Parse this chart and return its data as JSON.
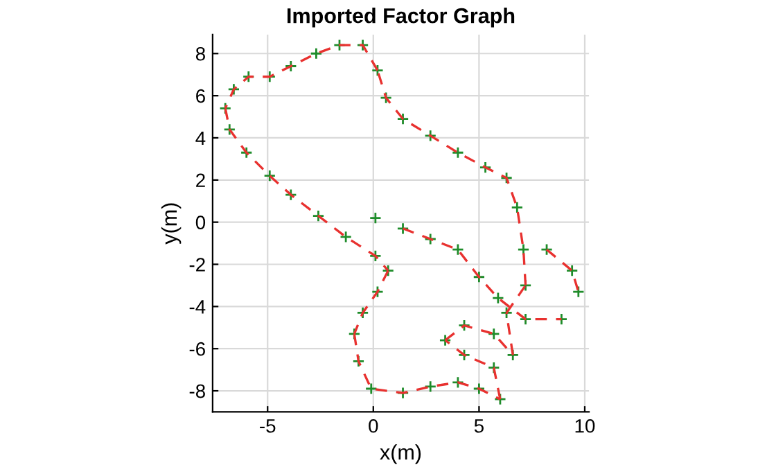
{
  "chart_data": {
    "type": "line",
    "title": "Imported Factor Graph",
    "xlabel": "x(m)",
    "ylabel": "y(m)",
    "xlim": [
      -7.6,
      10.2
    ],
    "ylim": [
      -9.0,
      8.9
    ],
    "xticks": [
      -5,
      0,
      5,
      10
    ],
    "yticks": [
      -8,
      -6,
      -4,
      -2,
      0,
      2,
      4,
      6,
      8
    ],
    "grid": true,
    "series": [
      {
        "type": "line",
        "color": "#e8312f",
        "line_style": "dashed",
        "x": [
          0.2,
          -0.5,
          -1.6,
          -2.7,
          -3.9,
          -4.9,
          -5.9,
          -6.6,
          -7.0
        ],
        "values": [
          7.2,
          8.4,
          8.4,
          8.0,
          7.4,
          6.9,
          6.9,
          6.3,
          5.4
        ]
      },
      {
        "color": "#e8312f",
        "line_style": "dashed",
        "x": [
          -7.0,
          -6.8,
          -6.0,
          -4.9,
          -3.9,
          -2.6,
          -1.3,
          0.1,
          0.7
        ],
        "values": [
          5.4,
          4.4,
          3.3,
          2.2,
          1.3,
          0.3,
          -0.7,
          -1.6,
          -2.3
        ]
      },
      {
        "color": "#e8312f",
        "line_style": "dashed",
        "x": [
          0.7,
          0.2,
          -0.5,
          -0.9
        ],
        "values": [
          -2.3,
          -3.3,
          -4.3,
          -5.3
        ]
      },
      {
        "color": "#e8312f",
        "line_style": "dashed",
        "x": [
          -0.9,
          -0.7,
          -0.1,
          1.4,
          2.7,
          4.0,
          5.0,
          6.0
        ],
        "values": [
          -5.3,
          -6.6,
          -7.9,
          -8.1,
          -7.8,
          -7.6,
          -7.9,
          -8.4
        ]
      },
      {
        "color": "#e8312f",
        "line_style": "dashed",
        "x": [
          6.0,
          5.7,
          4.3,
          3.4
        ],
        "values": [
          -8.4,
          -6.9,
          -6.3,
          -5.6
        ]
      },
      {
        "color": "#e8312f",
        "line_style": "dashed",
        "x": [
          3.4,
          4.3,
          5.7,
          6.6
        ],
        "values": [
          -5.6,
          -4.9,
          -5.3,
          -6.3
        ]
      },
      {
        "color": "#e8312f",
        "line_style": "dashed",
        "x": [
          6.6,
          6.3
        ],
        "values": [
          -6.3,
          -4.3
        ]
      },
      {
        "color": "#e8312f",
        "line_style": "dashed",
        "x": [
          6.3,
          7.2
        ],
        "values": [
          -4.3,
          -3.0
        ]
      },
      {
        "color": "#e8312f",
        "line_style": "dashed",
        "x": [
          7.2,
          7.1,
          6.8,
          6.3,
          5.3,
          4.0,
          2.7,
          1.4,
          0.6,
          0.2
        ],
        "values": [
          -3.0,
          -1.3,
          0.7,
          2.1,
          2.6,
          3.3,
          4.1,
          4.9,
          5.9,
          7.2
        ]
      },
      {
        "color": "#e8312f",
        "line_style": "dashed",
        "x": [
          1.4,
          2.7,
          4.0,
          5.0,
          5.9,
          7.2,
          8.9
        ],
        "values": [
          -0.3,
          -0.8,
          -1.3,
          -2.6,
          -3.6,
          -4.6,
          -4.6
        ]
      },
      {
        "color": "#e8312f",
        "line_style": "dashed",
        "x": [
          8.2,
          9.4,
          9.7
        ],
        "values": [
          -1.3,
          -2.3,
          -3.3
        ]
      },
      {
        "type": "scatter",
        "color": "#1e8c2a",
        "marker": "cross",
        "x": [
          0.1,
          0.2,
          -0.5,
          -1.6,
          -2.7,
          -3.9,
          -4.9,
          -5.9,
          -6.6,
          -7.0,
          -6.8,
          -6.0,
          -4.9,
          -3.9,
          -2.6,
          -1.3,
          0.1,
          0.7,
          0.2,
          -0.5,
          -0.9,
          -0.7,
          -0.1,
          1.4,
          2.7,
          4.0,
          5.0,
          6.0,
          5.7,
          4.3,
          3.4,
          4.3,
          5.7,
          6.6,
          6.3,
          7.2,
          7.1,
          6.8,
          6.3,
          5.3,
          4.0,
          2.7,
          1.4,
          0.6,
          1.4,
          2.7,
          4.0,
          5.0,
          5.9,
          7.2,
          8.9,
          8.2,
          9.4,
          9.7
        ],
        "values": [
          0.2,
          7.2,
          8.4,
          8.4,
          8.0,
          7.4,
          6.9,
          6.9,
          6.3,
          5.4,
          4.4,
          3.3,
          2.2,
          1.3,
          0.3,
          -0.7,
          -1.6,
          -2.3,
          -3.3,
          -4.3,
          -5.3,
          -6.6,
          -7.9,
          -8.1,
          -7.8,
          -7.6,
          -7.9,
          -8.4,
          -6.9,
          -6.3,
          -5.6,
          -4.9,
          -5.3,
          -6.3,
          -4.3,
          -3.0,
          -1.3,
          0.7,
          2.1,
          2.6,
          3.3,
          4.1,
          4.9,
          5.9,
          -0.3,
          -0.8,
          -1.3,
          -2.6,
          -3.6,
          -4.6,
          -4.6,
          -1.3,
          -2.3,
          -3.3
        ]
      }
    ]
  }
}
